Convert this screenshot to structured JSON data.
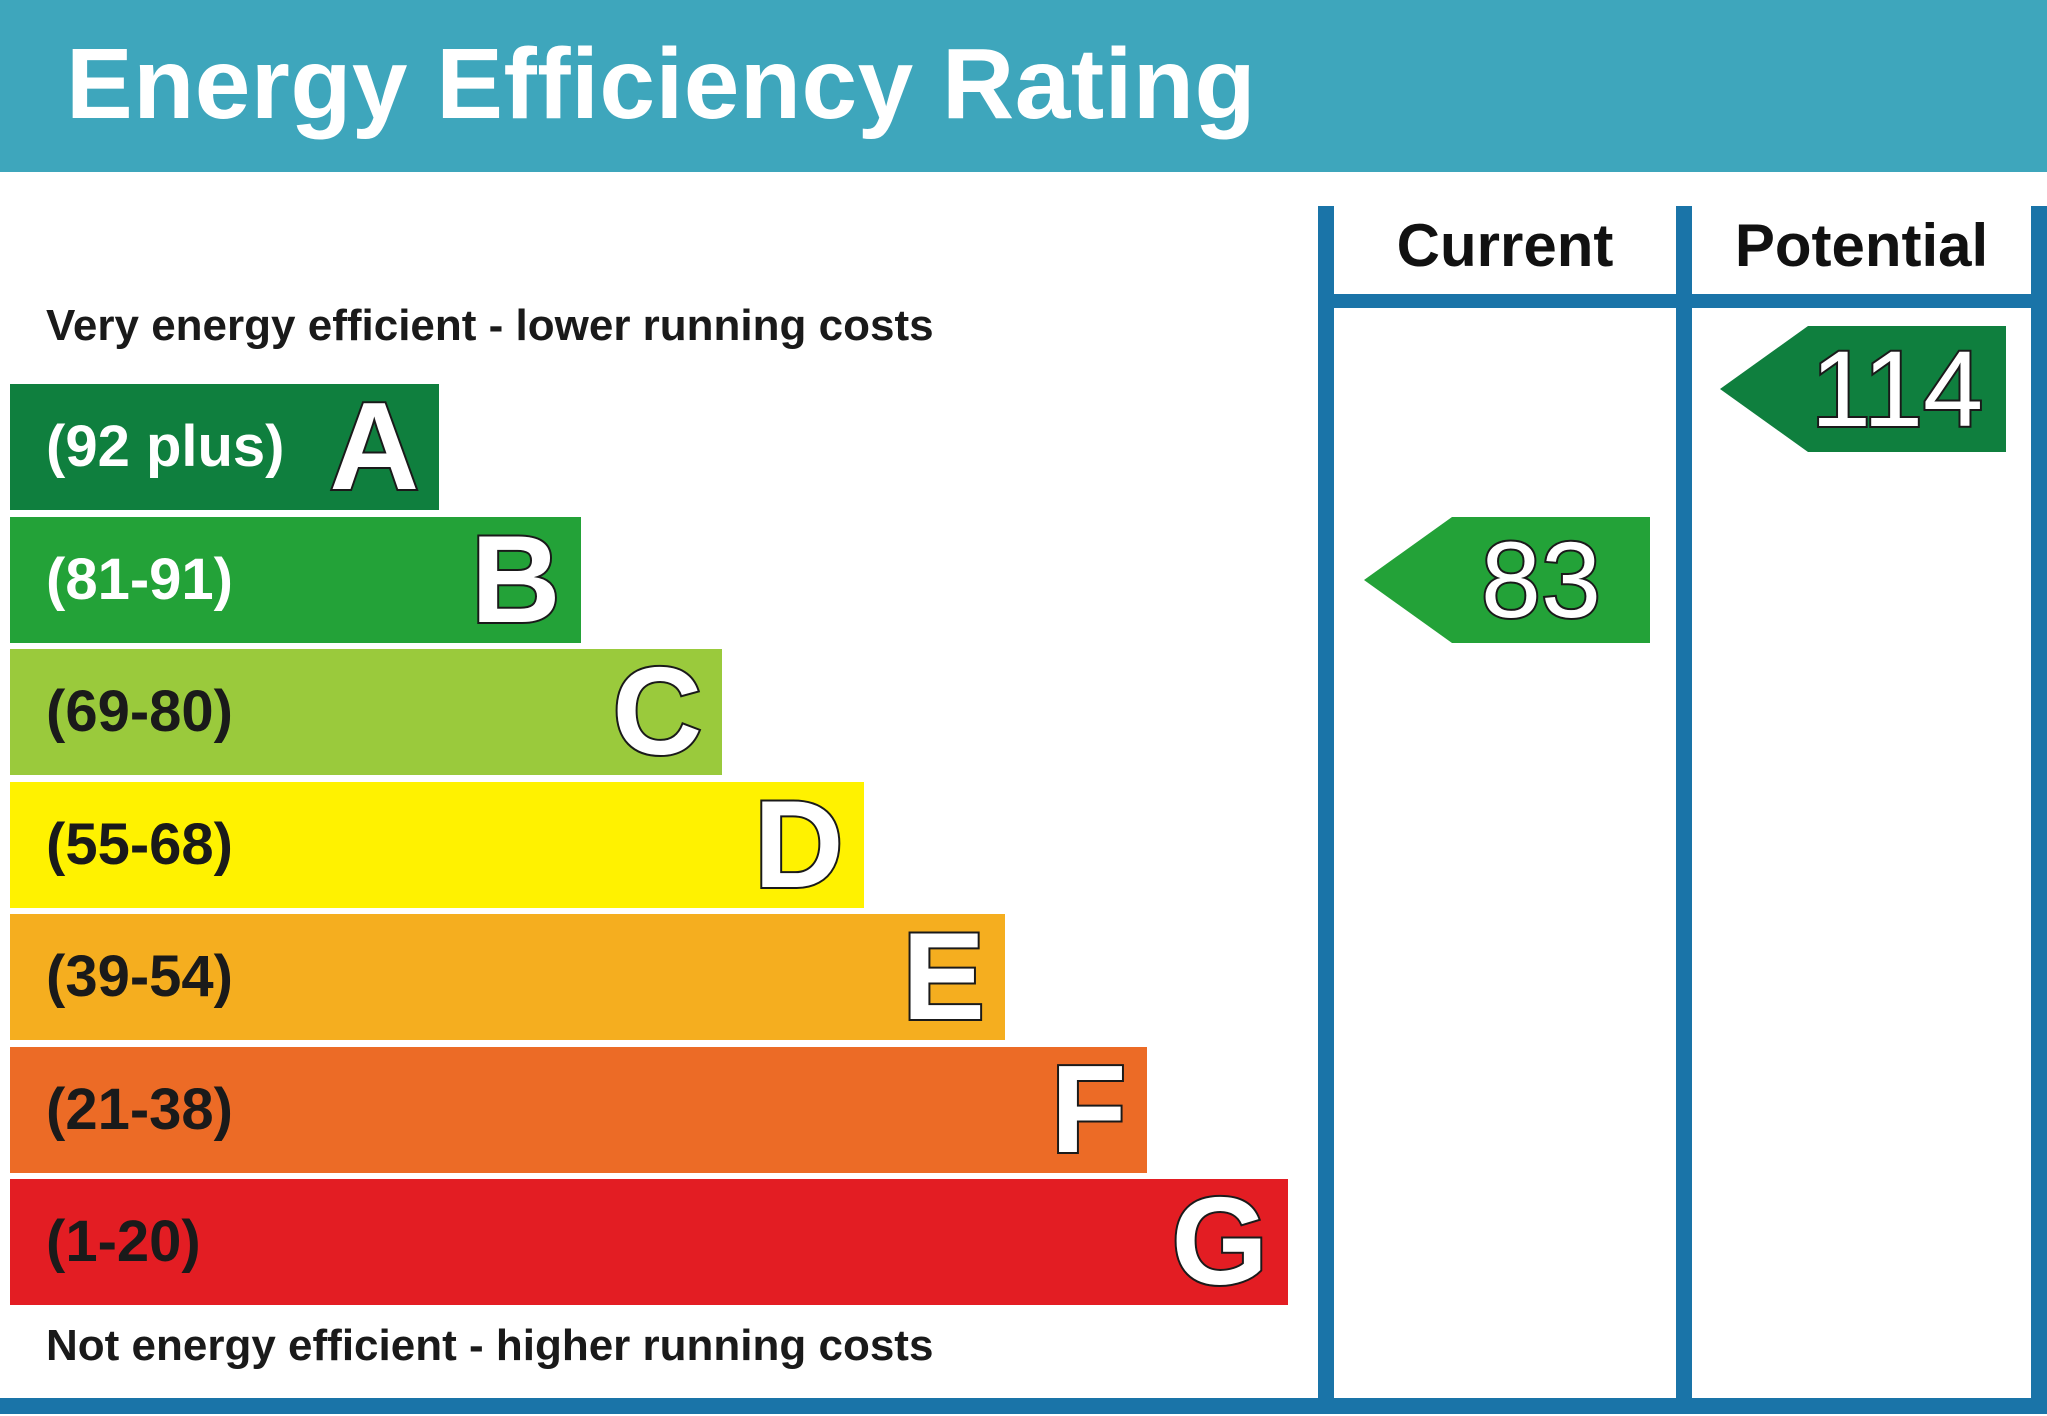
{
  "header": {
    "title": "Energy Efficiency Rating"
  },
  "captions": {
    "top": "Very energy efficient - lower running costs",
    "bottom": "Not energy efficient - higher running costs"
  },
  "columns": {
    "current": "Current",
    "potential": "Potential"
  },
  "colors": {
    "header": "#3ea6bc",
    "frame": "#1a74a8",
    "band_A": "#0f7f3e",
    "band_B": "#23a238",
    "band_C": "#9aca3c",
    "band_D": "#fff200",
    "band_E": "#f5ae1f",
    "band_F": "#ec6b26",
    "band_G": "#e31d23"
  },
  "chart_data": {
    "type": "bar",
    "title": "Energy Efficiency Rating",
    "categories": [
      "A",
      "B",
      "C",
      "D",
      "E",
      "F",
      "G"
    ],
    "bands": [
      {
        "letter": "A",
        "range": "(92 plus)",
        "color": "#0f7f3e",
        "text_color": "#ffffff"
      },
      {
        "letter": "B",
        "range": "(81-91)",
        "color": "#23a238",
        "text_color": "#ffffff"
      },
      {
        "letter": "C",
        "range": "(69-80)",
        "color": "#9aca3c",
        "text_color": "#1a1a1a"
      },
      {
        "letter": "D",
        "range": "(55-68)",
        "color": "#fff200",
        "text_color": "#1a1a1a"
      },
      {
        "letter": "E",
        "range": "(39-54)",
        "color": "#f5ae1f",
        "text_color": "#1a1a1a"
      },
      {
        "letter": "F",
        "range": "(21-38)",
        "color": "#ec6b26",
        "text_color": "#1a1a1a"
      },
      {
        "letter": "G",
        "range": "(1-20)",
        "color": "#e31d23",
        "text_color": "#1a1a1a"
      }
    ],
    "series": [
      {
        "name": "Current",
        "value": 83,
        "band": "B",
        "color": "#23a238"
      },
      {
        "name": "Potential",
        "value": 114,
        "band": "A",
        "color": "#0f7f3e"
      }
    ]
  }
}
